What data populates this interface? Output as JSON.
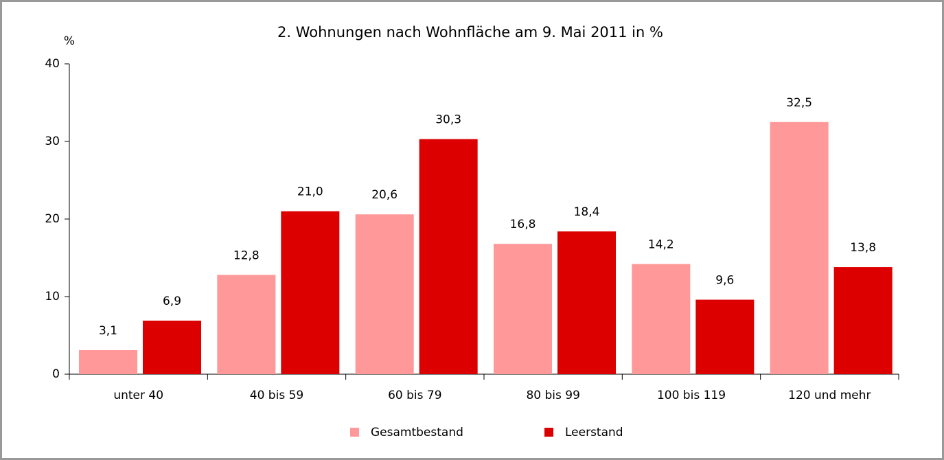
{
  "chart_data": {
    "type": "bar",
    "title": "2. Wohnungen nach Wohnfläche am 9. Mai 2011 in %",
    "y_label": "%",
    "categories": [
      "unter 40",
      "40 bis 59",
      "60 bis 79",
      "80 bis 99",
      "100 bis 119",
      "120 und mehr"
    ],
    "series": [
      {
        "name": "Gesamtbestand",
        "color": "#ff9999",
        "values": [
          3.1,
          12.8,
          20.6,
          16.8,
          14.2,
          32.5
        ],
        "value_labels": [
          "3,1",
          "12,8",
          "20,6",
          "16,8",
          "14,2",
          "32,5"
        ]
      },
      {
        "name": "Leerstand",
        "color": "#dd0000",
        "values": [
          6.9,
          21.0,
          30.3,
          18.4,
          9.6,
          13.8
        ],
        "value_labels": [
          "6,9",
          "21,0",
          "30,3",
          "18,4",
          "9,6",
          "13,8"
        ]
      }
    ],
    "ylim": [
      0,
      40
    ],
    "yticks": [
      0,
      10,
      20,
      30,
      40
    ],
    "grid": false,
    "legend": "bottom"
  }
}
